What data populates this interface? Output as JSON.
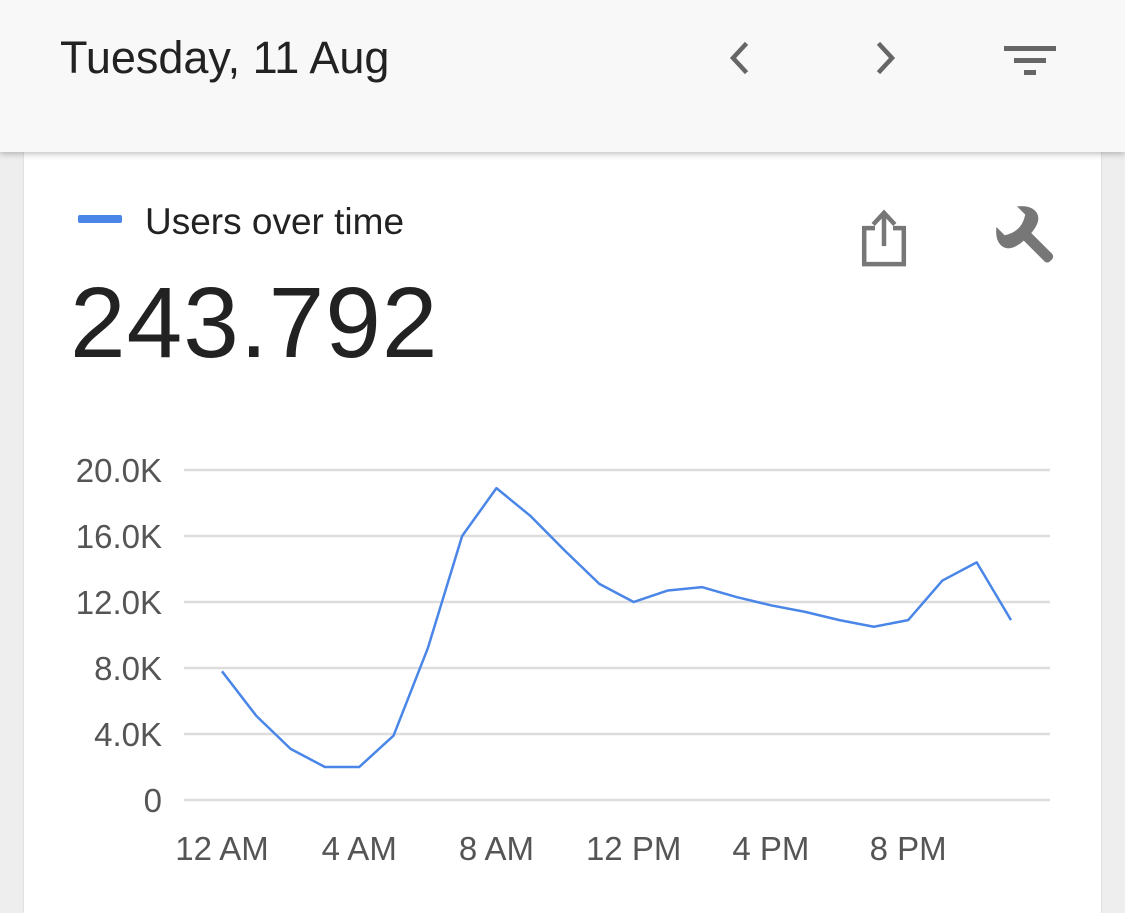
{
  "header": {
    "date_title": "Tuesday, 11 Aug",
    "prev_icon": "chevron-left-icon",
    "next_icon": "chevron-right-icon",
    "filter_icon": "filter-icon"
  },
  "card": {
    "legend_label": "Users over time",
    "legend_color": "#4a86e8",
    "total_value": "243.792",
    "share_icon": "share-icon",
    "settings_icon": "wrench-icon"
  },
  "chart_data": {
    "type": "line",
    "title": "",
    "xlabel": "",
    "ylabel": "",
    "ylim": [
      0,
      20000
    ],
    "y_ticks": [
      "0",
      "4.0K",
      "8.0K",
      "12.0K",
      "16.0K",
      "20.0K"
    ],
    "x_tick_labels": [
      "12 AM",
      "4 AM",
      "8 AM",
      "12 PM",
      "4 PM",
      "8 PM"
    ],
    "x_tick_hours": [
      0,
      4,
      8,
      12,
      16,
      20
    ],
    "grid": true,
    "series": [
      {
        "color": "#4a86e8",
        "x": [
          0,
          1,
          2,
          3,
          4,
          5,
          6,
          7,
          8,
          9,
          10,
          11,
          12,
          13,
          14,
          15,
          16,
          17,
          18,
          19,
          20,
          21,
          22,
          23
        ],
        "y": [
          7800,
          5100,
          3100,
          2000,
          2000,
          3900,
          9200,
          16000,
          18900,
          17200,
          15100,
          13100,
          12000,
          12700,
          12900,
          12300,
          11800,
          11400,
          10900,
          10500,
          10900,
          13300,
          14400,
          10900
        ]
      }
    ]
  }
}
